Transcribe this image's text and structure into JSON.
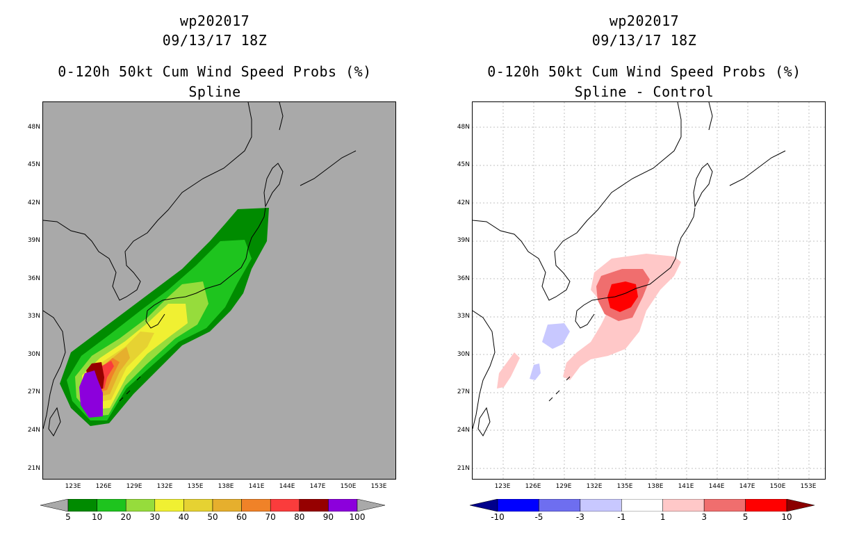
{
  "left": {
    "title_line1": "wp202017",
    "title_line2": "09/13/17 18Z",
    "title_line3": "0-120h 50kt Cum Wind Speed Probs (%)",
    "title_line4": "Spline",
    "colorbar": {
      "labels": [
        "5",
        "10",
        "20",
        "30",
        "40",
        "50",
        "60",
        "70",
        "80",
        "90",
        "100"
      ],
      "colors": [
        "#008b00",
        "#1ec41e",
        "#96dc3c",
        "#f0f032",
        "#e6d232",
        "#e6af2d",
        "#f08228",
        "#fa3c3c",
        "#960000",
        "#8c00dc"
      ],
      "ends": [
        "#a9a9a9",
        "#a9a9a9"
      ]
    }
  },
  "right": {
    "title_line1": "wp202017",
    "title_line2": "09/13/17 18Z",
    "title_line3": "0-120h 50kt Cum Wind Speed Probs (%)",
    "title_line4": "Spline - Control",
    "colorbar": {
      "labels": [
        "-10",
        "-5",
        "-3",
        "-1",
        "1",
        "3",
        "5",
        "10"
      ],
      "colors": [
        "#0000ff",
        "#6e6ef0",
        "#c8c8ff",
        "#ffffff",
        "#ffc8c8",
        "#f06e6e",
        "#ff0000"
      ],
      "ends": [
        "#00008b",
        "#8b0000"
      ]
    }
  },
  "axes": {
    "lat_labels": [
      "48N",
      "45N",
      "42N",
      "39N",
      "36N",
      "33N",
      "30N",
      "27N",
      "24N",
      "21N"
    ],
    "lon_labels": [
      "123E",
      "126E",
      "129E",
      "132E",
      "135E",
      "138E",
      "141E",
      "144E",
      "147E",
      "150E",
      "153E"
    ]
  },
  "colors": {
    "land_outline": "#000000",
    "grid": "#c0c0c0",
    "ocean_left": "#a9a9a9",
    "ocean_right": "#ffffff"
  }
}
